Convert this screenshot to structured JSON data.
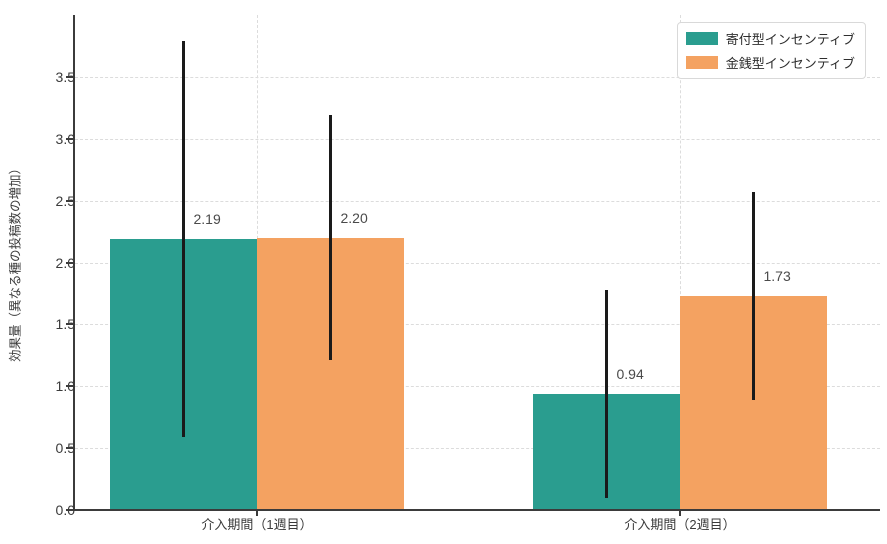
{
  "chart_data": {
    "type": "bar",
    "title": "",
    "categories": [
      "介入期間（1週目）",
      "介入期間（2週目）"
    ],
    "series": [
      {
        "name": "寄付型インセンティブ",
        "color": "#2a9d8f",
        "values": [
          2.19,
          0.94
        ],
        "error_low": [
          0.59,
          0.1
        ],
        "error_high": [
          3.79,
          1.78
        ]
      },
      {
        "name": "金銭型インセンティブ",
        "color": "#f4a261",
        "values": [
          2.2,
          1.73
        ],
        "error_low": [
          1.21,
          0.89
        ],
        "error_high": [
          3.19,
          2.57
        ]
      }
    ],
    "value_labels": [
      "2.19",
      "2.20",
      "0.94",
      "1.73"
    ],
    "xlabel": "",
    "ylabel": "効果量（異なる種の投稿数の増加）",
    "ylim": [
      0,
      4.0
    ],
    "yticks": [
      "0.0",
      "0.5",
      "1.0",
      "1.5",
      "2.0",
      "2.5",
      "3.0",
      "3.5"
    ],
    "grid": true,
    "legend_position": "upper right"
  },
  "styles": {
    "bar_color_1": "#2a9d8f",
    "bar_color_2": "#f4a261",
    "error_bar_color": "#1a1a1a",
    "grid_color": "#dcdcdc",
    "axis_color": "#3b3b3b",
    "value_text_color": "#4a4a4a",
    "background": "#ffffff"
  }
}
